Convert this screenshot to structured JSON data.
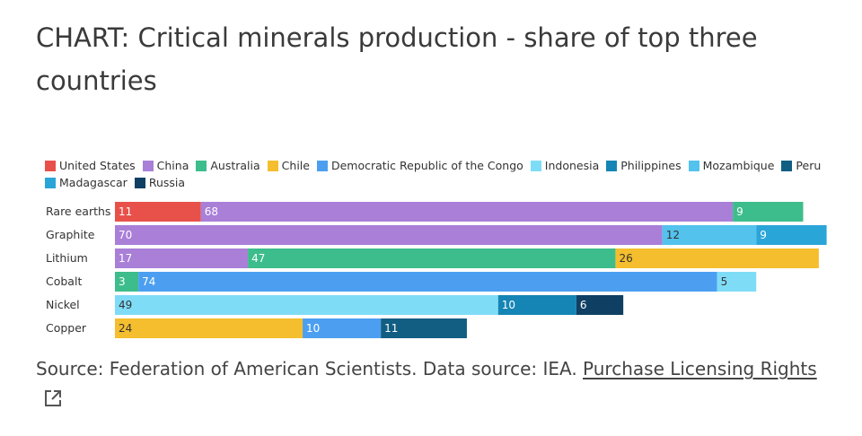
{
  "title": "CHART: Critical minerals production - share of top three countries",
  "source": {
    "text": "Source: Federation of American Scientists. Data source: IEA. ",
    "link_text": "Purchase Licensing Rights",
    "icon": "external-link-icon"
  },
  "legend": [
    {
      "name": "United States",
      "color": "#e8514a"
    },
    {
      "name": "China",
      "color": "#a97fd8"
    },
    {
      "name": "Australia",
      "color": "#3dbd8c"
    },
    {
      "name": "Chile",
      "color": "#f5be2e"
    },
    {
      "name": "Democratic Republic of the Congo",
      "color": "#4c9ff0"
    },
    {
      "name": "Indonesia",
      "color": "#7fdcf7"
    },
    {
      "name": "Philippines",
      "color": "#1585b5"
    },
    {
      "name": "Mozambique",
      "color": "#53c2ed"
    },
    {
      "name": "Peru",
      "color": "#115e82"
    },
    {
      "name": "Madagascar",
      "color": "#2aa5d8"
    },
    {
      "name": "Russia",
      "color": "#0f3f63"
    }
  ],
  "chart_data": {
    "type": "bar",
    "orientation": "horizontal",
    "stacked": true,
    "title": "CHART: Critical minerals production - share of top three countries",
    "xlim": [
      0,
      100
    ],
    "categories": [
      "Rare earths",
      "Graphite",
      "Lithium",
      "Cobalt",
      "Nickel",
      "Copper"
    ],
    "rows": [
      {
        "category": "Rare earths",
        "segments": [
          {
            "country": "United States",
            "value": 11,
            "color": "#e8514a",
            "label_color": "#ffffff"
          },
          {
            "country": "China",
            "value": 68,
            "color": "#a97fd8",
            "label_color": "#ffffff"
          },
          {
            "country": "Australia",
            "value": 9,
            "color": "#3dbd8c",
            "label_color": "#ffffff"
          }
        ]
      },
      {
        "category": "Graphite",
        "segments": [
          {
            "country": "China",
            "value": 70,
            "color": "#a97fd8",
            "label_color": "#ffffff"
          },
          {
            "country": "Mozambique",
            "value": 12,
            "color": "#53c2ed",
            "label_color": "#333333"
          },
          {
            "country": "Madagascar",
            "value": 9,
            "color": "#2aa5d8",
            "label_color": "#ffffff"
          }
        ]
      },
      {
        "category": "Lithium",
        "segments": [
          {
            "country": "China",
            "value": 17,
            "color": "#a97fd8",
            "label_color": "#ffffff"
          },
          {
            "country": "Australia",
            "value": 47,
            "color": "#3dbd8c",
            "label_color": "#ffffff"
          },
          {
            "country": "Chile",
            "value": 26,
            "color": "#f5be2e",
            "label_color": "#333333"
          }
        ]
      },
      {
        "category": "Cobalt",
        "segments": [
          {
            "country": "Australia",
            "value": 3,
            "color": "#3dbd8c",
            "label_color": "#ffffff"
          },
          {
            "country": "Democratic Republic of the Congo",
            "value": 74,
            "color": "#4c9ff0",
            "label_color": "#ffffff"
          },
          {
            "country": "Indonesia",
            "value": 5,
            "color": "#7fdcf7",
            "label_color": "#333333"
          }
        ]
      },
      {
        "category": "Nickel",
        "segments": [
          {
            "country": "Indonesia",
            "value": 49,
            "color": "#7fdcf7",
            "label_color": "#333333"
          },
          {
            "country": "Philippines",
            "value": 10,
            "color": "#1585b5",
            "label_color": "#ffffff"
          },
          {
            "country": "Russia",
            "value": 6,
            "color": "#0f3f63",
            "label_color": "#ffffff"
          }
        ]
      },
      {
        "category": "Copper",
        "segments": [
          {
            "country": "Chile",
            "value": 24,
            "color": "#f5be2e",
            "label_color": "#333333"
          },
          {
            "country": "Democratic Republic of the Congo",
            "value": 10,
            "color": "#4c9ff0",
            "label_color": "#ffffff"
          },
          {
            "country": "Peru",
            "value": 11,
            "color": "#115e82",
            "label_color": "#ffffff"
          }
        ]
      }
    ]
  }
}
